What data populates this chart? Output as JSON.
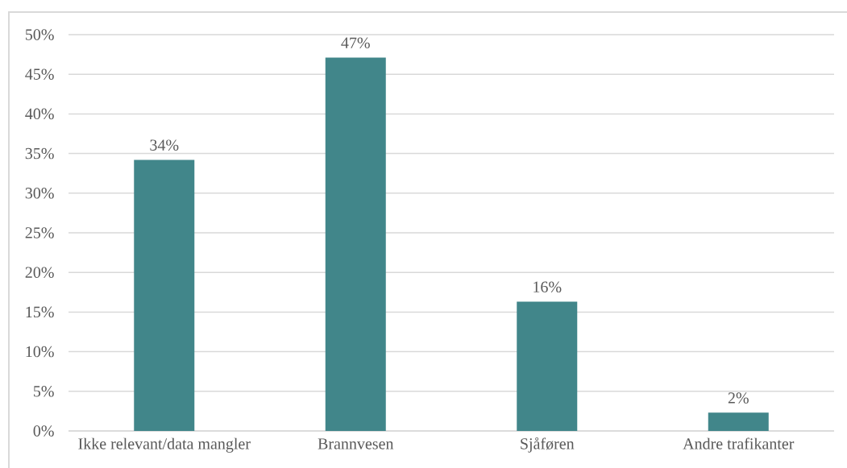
{
  "chart_data": {
    "type": "bar",
    "categories": [
      "Ikke relevant/data mangler",
      "Brannvesen",
      "Sjåføren",
      "Andre trafikanter"
    ],
    "values": [
      34.2,
      47.1,
      16.3,
      2.3
    ],
    "value_labels": [
      "34%",
      "47%",
      "16%",
      "2%"
    ],
    "color": "#41868a",
    "ylim": [
      0,
      50
    ],
    "yticks": [
      {
        "value": 0,
        "label": "0%"
      },
      {
        "value": 5,
        "label": "5%"
      },
      {
        "value": 10,
        "label": "10%"
      },
      {
        "value": 15,
        "label": "15%"
      },
      {
        "value": 20,
        "label": "20%"
      },
      {
        "value": 25,
        "label": "25%"
      },
      {
        "value": 30,
        "label": "30%"
      },
      {
        "value": 35,
        "label": "35%"
      },
      {
        "value": 40,
        "label": "40%"
      },
      {
        "value": 45,
        "label": "45%"
      },
      {
        "value": 50,
        "label": "50%"
      }
    ],
    "grid": "y"
  }
}
